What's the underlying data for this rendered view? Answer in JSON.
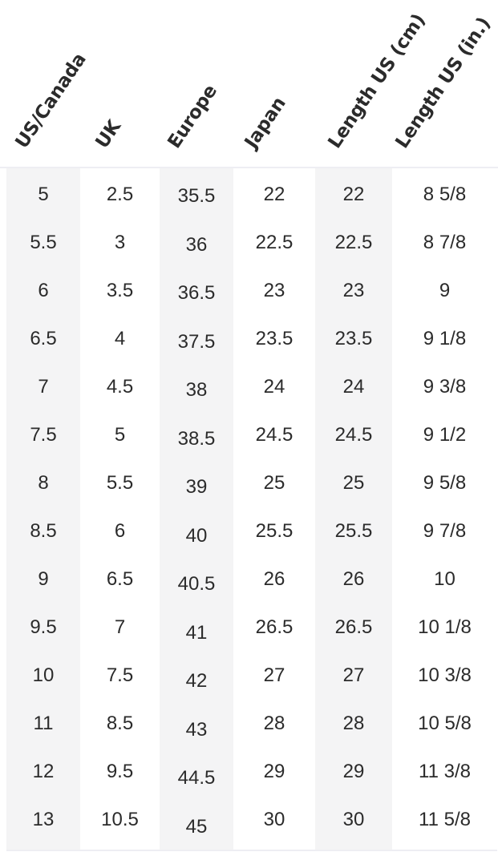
{
  "headers": [
    "US/Canada",
    "UK",
    "Europe",
    "Japan",
    "Length US (cm)",
    "Length US (in.)"
  ],
  "rows": [
    [
      "5",
      "2.5",
      "35.5",
      "22",
      "22",
      "8 5/8"
    ],
    [
      "5.5",
      "3",
      "36",
      "22.5",
      "22.5",
      "8 7/8"
    ],
    [
      "6",
      "3.5",
      "36.5",
      "23",
      "23",
      "9"
    ],
    [
      "6.5",
      "4",
      "37.5",
      "23.5",
      "23.5",
      "9 1/8"
    ],
    [
      "7",
      "4.5",
      "38",
      "24",
      "24",
      "9 3/8"
    ],
    [
      "7.5",
      "5",
      "38.5",
      "24.5",
      "24.5",
      "9 1/2"
    ],
    [
      "8",
      "5.5",
      "39",
      "25",
      "25",
      "9 5/8"
    ],
    [
      "8.5",
      "6",
      "40",
      "25.5",
      "25.5",
      "9 7/8"
    ],
    [
      "9",
      "6.5",
      "40.5",
      "26",
      "26",
      "10"
    ],
    [
      "9.5",
      "7",
      "41",
      "26.5",
      "26.5",
      "10 1/8"
    ],
    [
      "10",
      "7.5",
      "42",
      "27",
      "27",
      "10 3/8"
    ],
    [
      "11",
      "8.5",
      "43",
      "28",
      "28",
      "10 5/8"
    ],
    [
      "12",
      "9.5",
      "44.5",
      "29",
      "29",
      "11 3/8"
    ],
    [
      "13",
      "10.5",
      "45",
      "30",
      "30",
      "11 5/8"
    ]
  ],
  "colors": {
    "shaded_column": "#f4f4f5",
    "text": "#2b2b2b",
    "divider": "#eeeef3"
  }
}
